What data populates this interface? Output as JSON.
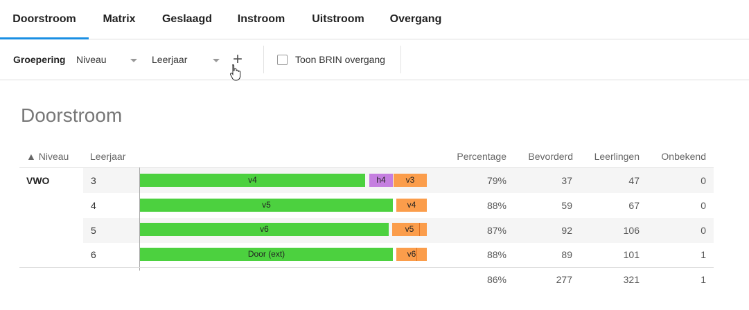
{
  "tabs": [
    {
      "label": "Doorstroom",
      "active": true
    },
    {
      "label": "Matrix",
      "active": false
    },
    {
      "label": "Geslaagd",
      "active": false
    },
    {
      "label": "Instroom",
      "active": false
    },
    {
      "label": "Uitstroom",
      "active": false
    },
    {
      "label": "Overgang",
      "active": false
    }
  ],
  "toolbar": {
    "grouping_label": "Groepering",
    "dropdown1": "Niveau",
    "dropdown2": "Leerjaar",
    "add_symbol": "+",
    "checkbox_label": "Toon BRIN overgang",
    "checkbox_checked": false
  },
  "page_title": "Doorstroom",
  "table": {
    "headers": {
      "niveau": "▲ Niveau",
      "leerjaar": "Leerjaar",
      "percentage": "Percentage",
      "bevorderd": "Bevorderd",
      "leerlingen": "Leerlingen",
      "onbekend": "Onbekend"
    },
    "rows": [
      {
        "niveau": "VWO",
        "leerjaar": "3",
        "percentage": "79%",
        "bevorderd": "37",
        "leerlingen": "47",
        "onbekend": "0",
        "segments": [
          {
            "label": "v4",
            "color": "#4cd13f"
          },
          {
            "label": "h4",
            "color": "#c57fe0"
          },
          {
            "label": "v3",
            "color": "#fb9d4b"
          }
        ]
      },
      {
        "niveau": "",
        "leerjaar": "4",
        "percentage": "88%",
        "bevorderd": "59",
        "leerlingen": "67",
        "onbekend": "0",
        "segments": [
          {
            "label": "v5",
            "color": "#4cd13f"
          },
          {
            "label": "v4",
            "color": "#fb9d4b"
          }
        ]
      },
      {
        "niveau": "",
        "leerjaar": "5",
        "percentage": "87%",
        "bevorderd": "92",
        "leerlingen": "106",
        "onbekend": "0",
        "segments": [
          {
            "label": "v6",
            "color": "#4cd13f"
          },
          {
            "label": "v5",
            "color": "#fb9d4b"
          }
        ]
      },
      {
        "niveau": "",
        "leerjaar": "6",
        "percentage": "88%",
        "bevorderd": "89",
        "leerlingen": "101",
        "onbekend": "1",
        "segments": [
          {
            "label": "Door (ext)",
            "color": "#4cd13f"
          },
          {
            "label": "v6",
            "color": "#fb9d4b"
          }
        ]
      }
    ],
    "totals": {
      "percentage": "86%",
      "bevorderd": "277",
      "leerlingen": "321",
      "onbekend": "1"
    }
  },
  "colors": {
    "accent": "#1a8fe3",
    "green": "#4cd13f",
    "purple": "#c57fe0",
    "orange": "#fb9d4b"
  }
}
